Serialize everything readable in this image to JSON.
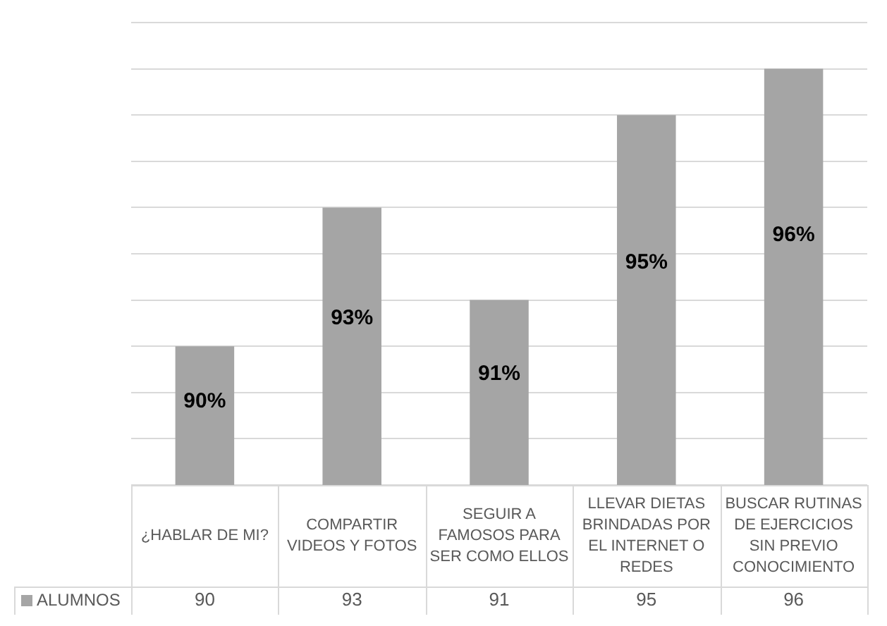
{
  "chart_data": {
    "type": "bar",
    "categories": [
      "¿HABLAR DE MI?",
      "COMPARTIR VIDEOS Y FOTOS",
      "SEGUIR A FAMOSOS PARA SER COMO ELLOS",
      "LLEVAR DIETAS BRINDADAS POR EL INTERNET O REDES",
      "BUSCAR RUTINAS DE EJERCICIOS SIN PREVIO CONOCIMIENTO"
    ],
    "series": [
      {
        "name": "ALUMNOS",
        "color": "#a5a5a5",
        "values": [
          90,
          93,
          91,
          95,
          96
        ]
      }
    ],
    "ylim": [
      87,
      97
    ],
    "yticks": [
      {
        "value": 87,
        "label": null
      },
      {
        "value": 88,
        "label": null
      },
      {
        "value": 89,
        "label": null
      },
      {
        "value": 90,
        "label": null
      },
      {
        "value": 91,
        "label": null
      },
      {
        "value": 92,
        "label": null
      },
      {
        "value": 93,
        "label": null
      },
      {
        "value": 94,
        "label": null
      },
      {
        "value": 95,
        "label": null
      },
      {
        "value": 96,
        "label": null
      },
      {
        "value": 97,
        "label": null
      }
    ],
    "annotations": [
      "90%",
      "93%",
      "91%",
      "95%",
      "96%"
    ],
    "grid": "y",
    "tick_labels": "x",
    "data_labels": true,
    "legend": "bottom left"
  }
}
